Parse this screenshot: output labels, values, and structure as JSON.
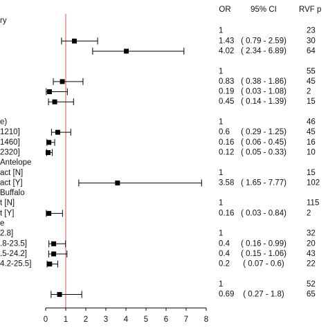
{
  "chart_data": {
    "type": "forest",
    "columns": {
      "or": "OR",
      "ci": "95% CI",
      "p": "RVF p"
    },
    "xlim": [
      0,
      8
    ],
    "xticks": [
      0,
      1,
      2,
      3,
      4,
      5,
      6,
      7,
      8
    ],
    "reference_line": 1,
    "reference_color": "#d9534f",
    "marker_color": "#000000",
    "groups": [
      {
        "rows": [
          {
            "label": "ry"
          },
          {
            "or": 1,
            "p": 23
          },
          {
            "or": 1.43,
            "ci_low": 0.79,
            "ci_high": 2.59,
            "ci_label": "( 0.79 - 2.59)",
            "p": 30
          },
          {
            "or": 4.02,
            "ci_low": 2.34,
            "ci_high": 6.89,
            "ci_label": "( 2.34 - 6.89)",
            "p": 64
          }
        ]
      },
      {
        "rows": [
          {
            "or": 1,
            "p": 55
          },
          {
            "or": 0.83,
            "ci_low": 0.38,
            "ci_high": 1.86,
            "ci_label": "( 0.38 - 1.86)",
            "p": 45
          },
          {
            "or": 0.19,
            "ci_low": 0.03,
            "ci_high": 1.08,
            "ci_label": "( 0.03 - 1.08)",
            "p": 2
          },
          {
            "or": 0.45,
            "ci_low": 0.14,
            "ci_high": 1.39,
            "ci_label": "( 0.14 - 1.39)",
            "p": 15
          }
        ]
      },
      {
        "rows": [
          {
            "label": "e)",
            "or": 1,
            "p": 46
          },
          {
            "label": "1210]",
            "or": 0.6,
            "ci_low": 0.29,
            "ci_high": 1.25,
            "ci_label": "( 0.29 - 1.25)",
            "p": 45
          },
          {
            "label": "1460]",
            "or": 0.16,
            "ci_low": 0.06,
            "ci_high": 0.45,
            "ci_label": "( 0.06 - 0.45)",
            "p": 16
          },
          {
            "label": "2320]",
            "or": 0.12,
            "ci_low": 0.05,
            "ci_high": 0.33,
            "ci_label": "( 0.05 - 0.33)",
            "p": 10
          },
          {
            "label": "Antelope"
          },
          {
            "label": "act [N]",
            "or": 1,
            "p": 15
          },
          {
            "label": "act [Y]",
            "or": 3.58,
            "ci_low": 1.65,
            "ci_high": 7.77,
            "ci_label": "( 1.65 - 7.77)",
            "p": 102
          },
          {
            "label": "Buffalo"
          },
          {
            "label": "t [N]",
            "or": 1,
            "p": 115
          },
          {
            "label": "t [Y]",
            "or": 0.16,
            "ci_low": 0.03,
            "ci_high": 0.84,
            "ci_label": "( 0.03 - 0.84)",
            "p": 2
          },
          {
            "label": "e"
          },
          {
            "label": "2.8]",
            "or": 1,
            "p": 32
          },
          {
            "label": ".8-23.5]",
            "or": 0.4,
            "ci_low": 0.16,
            "ci_high": 0.99,
            "ci_label": "( 0.16 - 0.99)",
            "p": 20
          },
          {
            "label": ".5-24.2]",
            "or": 0.4,
            "ci_low": 0.15,
            "ci_high": 1.06,
            "ci_label": "( 0.15 - 1.06)",
            "p": 43
          },
          {
            "label": "4.2-25.5]",
            "or": 0.2,
            "ci_low": 0.07,
            "ci_high": 0.6,
            "ci_label": "( 0.07 - 0.6)",
            "p": 22
          }
        ]
      },
      {
        "rows": [
          {
            "or": 1,
            "p": 52
          },
          {
            "or": 0.69,
            "ci_low": 0.27,
            "ci_high": 1.8,
            "ci_label": "( 0.27 - 1.8)",
            "p": 65
          }
        ]
      }
    ]
  }
}
